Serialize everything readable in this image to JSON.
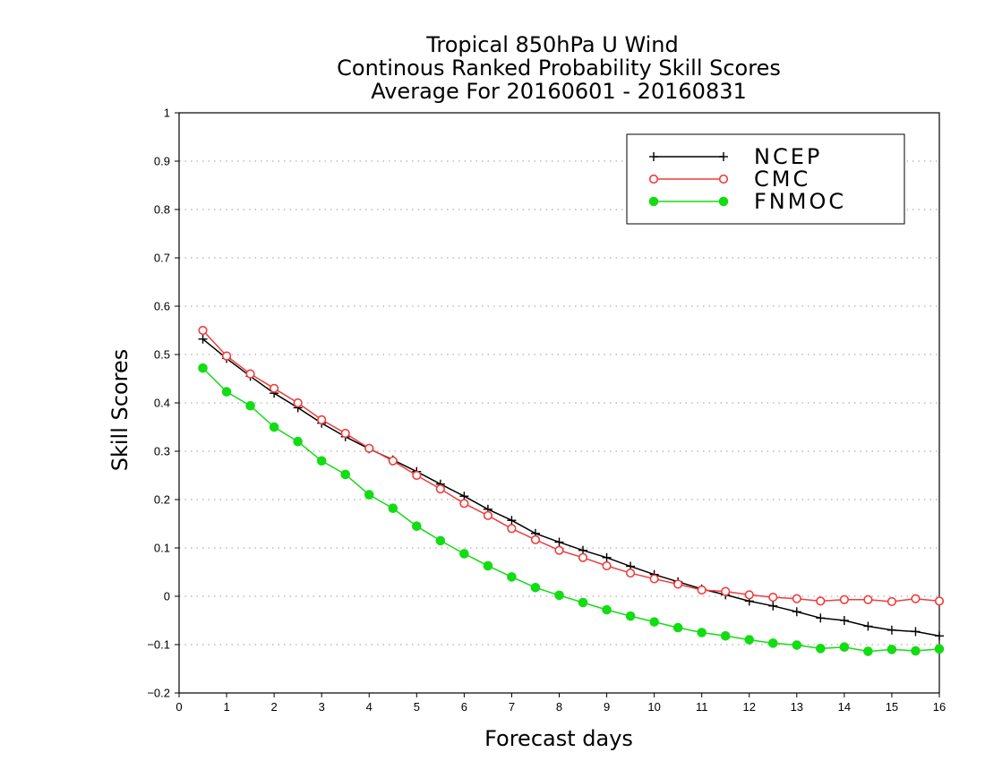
{
  "chart_data": {
    "type": "line",
    "title": [
      "Tropical 850hPa U Wind",
      "Continous Ranked Probability Skill Scores",
      "Average For 20160601 - 20160831"
    ],
    "xlabel": "Forecast days",
    "ylabel": "Skill Scores",
    "xlim": [
      0,
      16
    ],
    "ylim": [
      -0.2,
      1
    ],
    "xticks": [
      "0",
      "1",
      "2",
      "3",
      "4",
      "5",
      "6",
      "7",
      "8",
      "9",
      "10",
      "11",
      "12",
      "13",
      "14",
      "15",
      "16"
    ],
    "yticks": [
      "−0.2",
      "−0.1",
      "0",
      "0.1",
      "0.2",
      "0.3",
      "0.4",
      "0.5",
      "0.6",
      "0.7",
      "0.8",
      "0.9",
      "1"
    ],
    "grid": true,
    "legend_position": "top-right",
    "x": [
      0.5,
      1,
      1.5,
      2,
      2.5,
      3,
      3.5,
      4,
      4.5,
      5,
      5.5,
      6,
      6.5,
      7,
      7.5,
      8,
      8.5,
      9,
      9.5,
      10,
      10.5,
      11,
      11.5,
      12,
      12.5,
      13,
      13.5,
      14,
      14.5,
      15,
      15.5,
      16
    ],
    "series": [
      {
        "name": "NCEP",
        "color": "#000000",
        "marker": "plus",
        "values": [
          0.532,
          0.492,
          0.455,
          0.42,
          0.39,
          0.358,
          0.33,
          0.305,
          0.282,
          0.258,
          0.232,
          0.207,
          0.18,
          0.157,
          0.13,
          0.112,
          0.095,
          0.08,
          0.062,
          0.045,
          0.03,
          0.015,
          0.003,
          -0.01,
          -0.02,
          -0.032,
          -0.045,
          -0.05,
          -0.062,
          -0.07,
          -0.073,
          -0.082
        ]
      },
      {
        "name": "CMC",
        "color": "#f03c3c",
        "marker": "open-circle",
        "values": [
          0.55,
          0.497,
          0.46,
          0.43,
          0.4,
          0.365,
          0.337,
          0.306,
          0.28,
          0.25,
          0.222,
          0.192,
          0.167,
          0.14,
          0.117,
          0.095,
          0.08,
          0.063,
          0.048,
          0.036,
          0.025,
          0.013,
          0.01,
          0.003,
          -0.002,
          -0.005,
          -0.01,
          -0.007,
          -0.007,
          -0.011,
          -0.005,
          -0.01
        ]
      },
      {
        "name": "FNMOC",
        "color": "#14dc14",
        "marker": "filled-circle",
        "values": [
          0.472,
          0.423,
          0.394,
          0.35,
          0.32,
          0.28,
          0.252,
          0.21,
          0.182,
          0.145,
          0.115,
          0.088,
          0.063,
          0.04,
          0.018,
          0.002,
          -0.013,
          -0.028,
          -0.041,
          -0.053,
          -0.065,
          -0.075,
          -0.082,
          -0.09,
          -0.097,
          -0.101,
          -0.108,
          -0.105,
          -0.114,
          -0.11,
          -0.113,
          -0.109
        ]
      }
    ]
  }
}
